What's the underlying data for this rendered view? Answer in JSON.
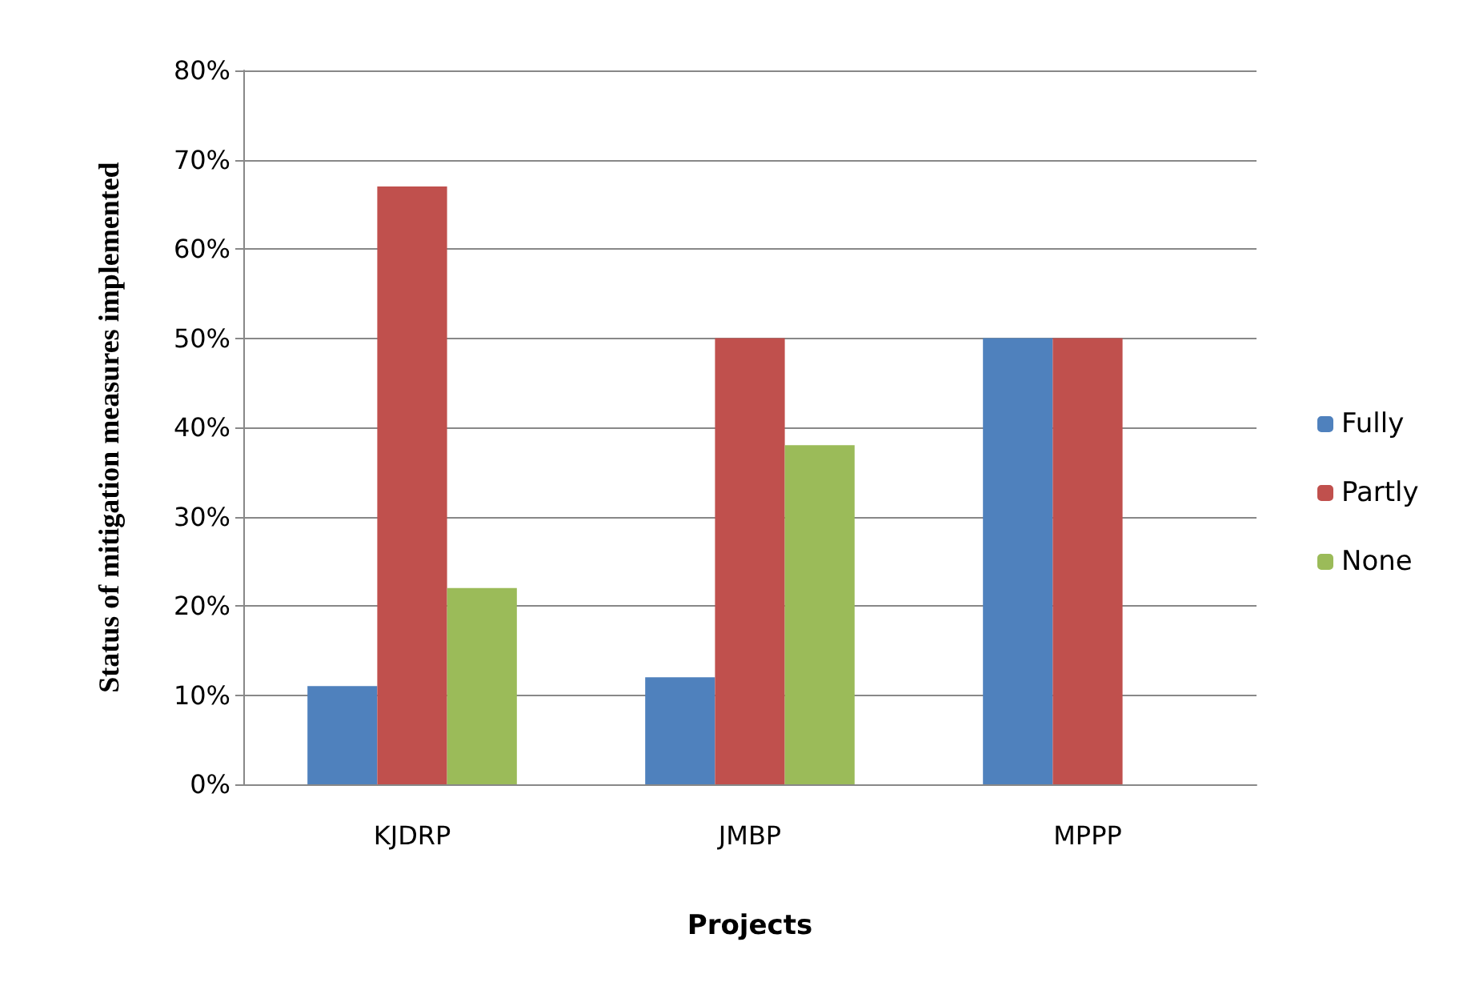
{
  "chart_data": {
    "type": "bar",
    "xlabel": "Projects",
    "ylabel": "Status of mitigation measures implemented",
    "categories": [
      "KJDRP",
      "JMBP",
      "MPPP"
    ],
    "series": [
      {
        "name": "Fully",
        "color": "#4f81bd",
        "values": [
          11,
          12,
          50
        ]
      },
      {
        "name": "Partly",
        "color": "#c0504d",
        "values": [
          67,
          50,
          50
        ]
      },
      {
        "name": "None",
        "color": "#9bbb59",
        "values": [
          22,
          38,
          0
        ]
      }
    ],
    "ylim": [
      0,
      80
    ],
    "yticks": [
      {
        "value": 0,
        "label": "0%"
      },
      {
        "value": 10,
        "label": "10%"
      },
      {
        "value": 20,
        "label": "20%"
      },
      {
        "value": 30,
        "label": "30%"
      },
      {
        "value": 40,
        "label": "40%"
      },
      {
        "value": 50,
        "label": "50%"
      },
      {
        "value": 60,
        "label": "60%"
      },
      {
        "value": 70,
        "label": "70%"
      },
      {
        "value": 80,
        "label": "80%"
      }
    ],
    "grid": "y",
    "legend": "right"
  }
}
